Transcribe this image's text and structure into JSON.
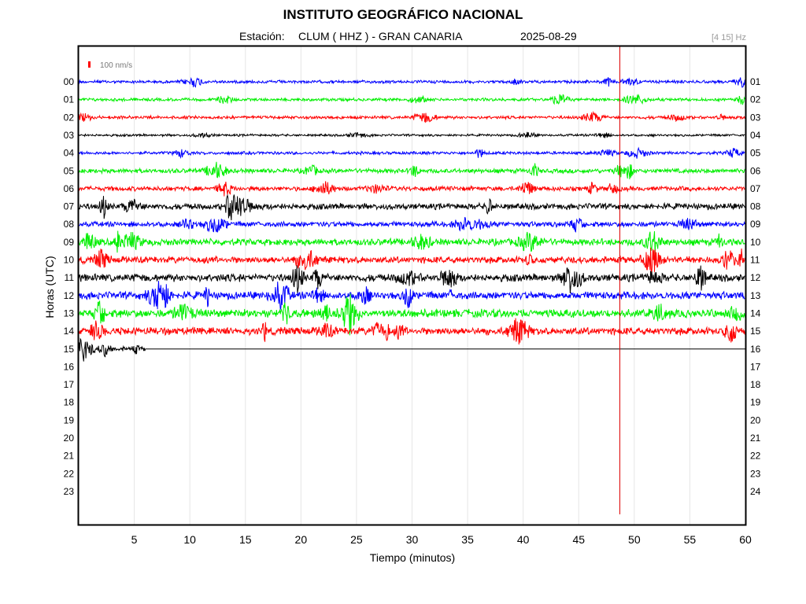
{
  "title": "INSTITUTO GEOGRÁFICO NACIONAL",
  "station_label": "Estación:",
  "station": "CLUM ( HHZ ) - GRAN CANARIA",
  "date": "2025-08-29",
  "filter": "[4 15] Hz",
  "chart_data": {
    "type": "line",
    "title": "INSTITUTO GEOGRÁFICO NACIONAL",
    "xlabel": "Tiempo (minutos)",
    "ylabel": "Horas (UTC)",
    "xlim": [
      0,
      60
    ],
    "x_ticks": [
      "5",
      "10",
      "15",
      "20",
      "25",
      "30",
      "35",
      "40",
      "45",
      "50",
      "55",
      "60"
    ],
    "left_hour_labels": [
      "00",
      "01",
      "02",
      "03",
      "04",
      "05",
      "06",
      "07",
      "08",
      "09",
      "10",
      "11",
      "12",
      "13",
      "14",
      "15",
      "16",
      "17",
      "18",
      "19",
      "20",
      "21",
      "22",
      "23"
    ],
    "right_hour_labels": [
      "01",
      "02",
      "03",
      "04",
      "05",
      "06",
      "07",
      "08",
      "09",
      "10",
      "11",
      "12",
      "13",
      "14",
      "15",
      "16",
      "17",
      "18",
      "19",
      "20",
      "21",
      "22",
      "23",
      "24"
    ],
    "scale_label": "100 nm/s",
    "grid": true,
    "series_colors": [
      "#0000ff",
      "#00ee00",
      "#ff0000",
      "#000000"
    ],
    "vertical_marker": {
      "x": 48.7,
      "color": "#dd0000"
    },
    "traces": [
      {
        "hour": 0,
        "color": "#0000ff",
        "amp": 2
      },
      {
        "hour": 1,
        "color": "#00ee00",
        "amp": 2
      },
      {
        "hour": 2,
        "color": "#ff0000",
        "amp": 2
      },
      {
        "hour": 3,
        "color": "#000000",
        "amp": 1.5
      },
      {
        "hour": 4,
        "color": "#0000ff",
        "amp": 2
      },
      {
        "hour": 5,
        "color": "#00ee00",
        "amp": 3
      },
      {
        "hour": 6,
        "color": "#ff0000",
        "amp": 3
      },
      {
        "hour": 7,
        "color": "#000000",
        "amp": 4
      },
      {
        "hour": 8,
        "color": "#0000ff",
        "amp": 3.5
      },
      {
        "hour": 9,
        "color": "#00ee00",
        "amp": 4.5
      },
      {
        "hour": 10,
        "color": "#ff0000",
        "amp": 4.5
      },
      {
        "hour": 11,
        "color": "#000000",
        "amp": 5
      },
      {
        "hour": 12,
        "color": "#0000ff",
        "amp": 5
      },
      {
        "hour": 13,
        "color": "#00ee00",
        "amp": 5.5
      },
      {
        "hour": 14,
        "color": "#ff0000",
        "amp": 5
      },
      {
        "hour": 15,
        "color": "#000000",
        "amp": 3,
        "end_minute": 6
      }
    ]
  }
}
